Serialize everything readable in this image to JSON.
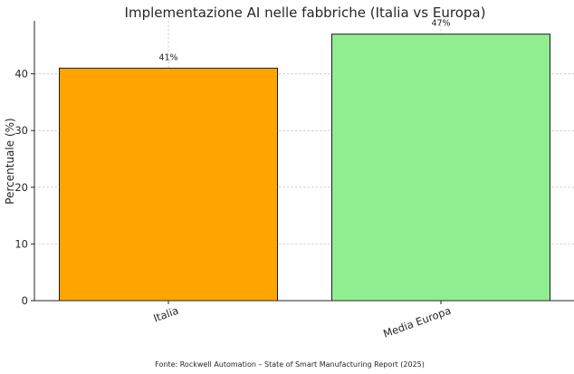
{
  "chart_data": {
    "type": "bar",
    "title": "Implementazione AI nelle fabbriche (Italia vs Europa)",
    "xlabel": "",
    "ylabel": "Percentuale (%)",
    "categories": [
      "Italia",
      "Media Europa"
    ],
    "values": [
      41,
      47
    ],
    "data_labels": [
      "41%",
      "47%"
    ],
    "colors": [
      "#FFA500",
      "#90EE90"
    ],
    "ylim": [
      0,
      49.35
    ],
    "yticks": [
      0,
      10,
      20,
      30,
      40
    ],
    "grid": true,
    "legend": "none"
  },
  "footnote": "Fonte: Rockwell Automation – State of Smart Manufacturing Report (2025)"
}
